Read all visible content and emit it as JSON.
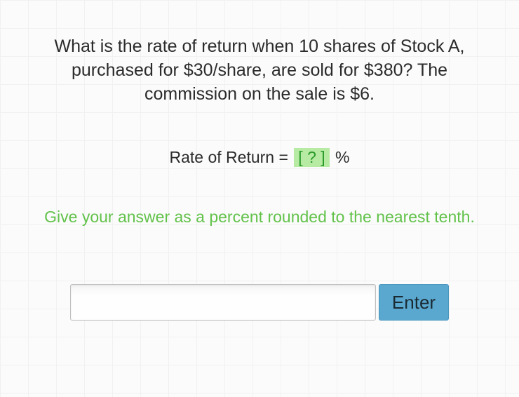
{
  "question": "What is the rate of return when 10 shares of Stock A, purchased for $30/share, are sold for $380? The commission on the sale is $6.",
  "formula": {
    "prefix": "Rate of Return = ",
    "placeholder_box": "[ ? ]",
    "suffix": " %"
  },
  "hint": "Give your answer as a percent rounded to the nearest tenth.",
  "input": {
    "value": "",
    "placeholder": ""
  },
  "enter_label": "Enter",
  "colors": {
    "text": "#2b2b2b",
    "hint": "#62c24a",
    "answer_box_bg": "#b7eaa2",
    "answer_box_text": "#2b9b2b",
    "button_bg": "#5aa8cf",
    "grid_line": "#f1f1f1",
    "background": "#fbfbfb"
  }
}
